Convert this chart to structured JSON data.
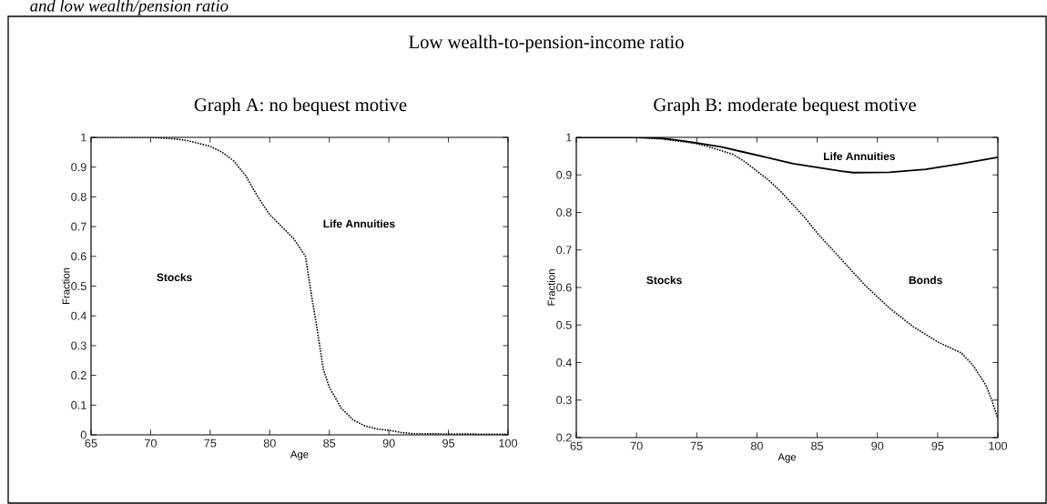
{
  "chart_data": [
    {
      "type": "line",
      "title": "Graph A: no bequest motive",
      "xlabel": "Age",
      "ylabel": "Fraction",
      "annotations": [
        "and low wealth/pension ratio",
        "Low wealth-to-pension-income ratio",
        "Stocks",
        "Life Annuities"
      ],
      "series": [
        {
          "color": "#000000",
          "line_style": "dotted",
          "x": [
            65,
            70,
            72,
            73,
            74,
            75,
            76,
            77,
            78,
            79,
            80,
            81,
            82,
            83,
            83.5,
            84,
            84.5,
            85,
            86,
            87,
            88,
            89,
            90,
            91,
            92,
            95,
            100
          ],
          "values": [
            1,
            1,
            0.995,
            0.99,
            0.98,
            0.97,
            0.95,
            0.92,
            0.87,
            0.8,
            0.74,
            0.7,
            0.66,
            0.6,
            0.47,
            0.35,
            0.22,
            0.16,
            0.09,
            0.05,
            0.03,
            0.02,
            0.015,
            0.008,
            0.004,
            0.003,
            0.002
          ]
        }
      ],
      "xlim": [
        65,
        100
      ],
      "ylim": [
        0,
        1
      ],
      "xticks": [
        65,
        70,
        75,
        80,
        85,
        90,
        95,
        100
      ],
      "yticks": [
        0,
        0.1,
        0.2,
        0.3,
        0.4,
        0.5,
        0.6,
        0.7,
        0.8,
        0.9,
        1
      ],
      "grid": false,
      "legend": false,
      "marker": "none"
    },
    {
      "type": "line",
      "title": "Graph B: moderate bequest motive",
      "xlabel": "Age",
      "ylabel": "Fraction",
      "annotations": [
        "Stocks",
        "Bonds",
        "Life Annuities"
      ],
      "series": [
        {
          "color": "#000000",
          "line_style": "solid",
          "x": [
            65,
            70,
            72,
            74,
            75,
            77,
            79,
            81,
            83,
            85,
            87,
            88,
            91,
            94,
            97,
            100
          ],
          "values": [
            1,
            1,
            0.998,
            0.99,
            0.985,
            0.975,
            0.96,
            0.945,
            0.93,
            0.92,
            0.91,
            0.906,
            0.907,
            0.915,
            0.93,
            0.947
          ]
        },
        {
          "color": "#000000",
          "line_style": "dotted",
          "x": [
            65,
            70,
            72,
            74,
            75,
            76,
            78,
            79,
            80,
            81,
            82,
            83,
            84,
            85,
            86,
            87,
            88,
            89,
            90,
            91,
            92,
            93,
            94,
            95,
            96,
            97,
            98,
            99,
            99.5,
            100
          ],
          "values": [
            1,
            1,
            0.996,
            0.988,
            0.983,
            0.975,
            0.955,
            0.935,
            0.91,
            0.885,
            0.855,
            0.82,
            0.785,
            0.745,
            0.71,
            0.675,
            0.64,
            0.605,
            0.575,
            0.545,
            0.52,
            0.495,
            0.475,
            0.455,
            0.44,
            0.425,
            0.39,
            0.34,
            0.3,
            0.25
          ]
        }
      ],
      "xlim": [
        65,
        100
      ],
      "ylim": [
        0.2,
        1
      ],
      "xticks": [
        65,
        70,
        75,
        80,
        85,
        90,
        95,
        100
      ],
      "yticks": [
        0.2,
        0.3,
        0.4,
        0.5,
        0.6,
        0.7,
        0.8,
        0.9,
        1
      ],
      "grid": false,
      "legend": false,
      "marker": "none"
    }
  ]
}
